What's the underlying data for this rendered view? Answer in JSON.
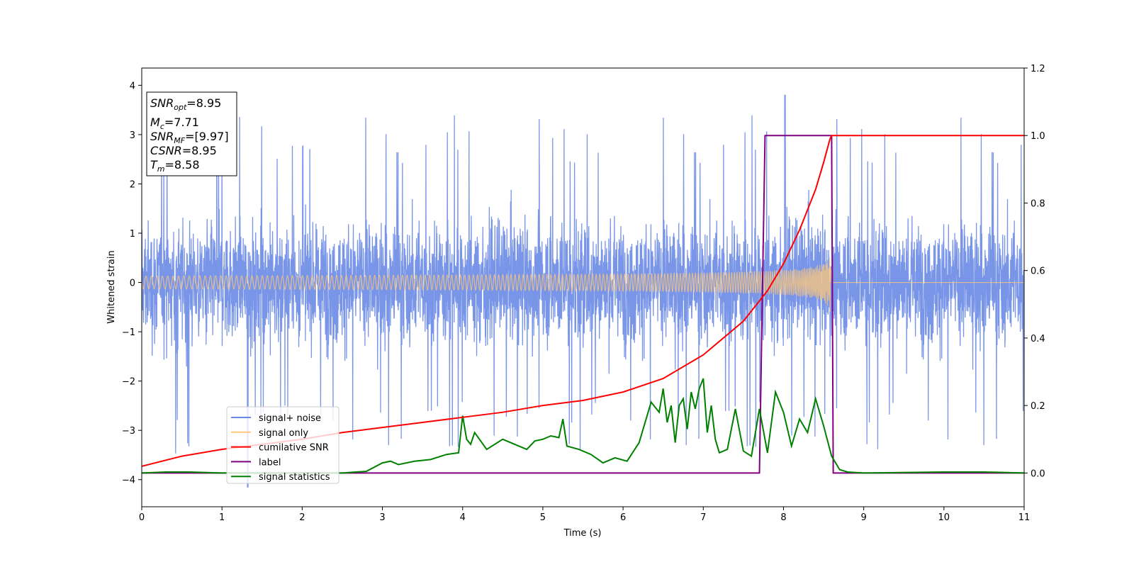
{
  "chart_data": {
    "type": "line",
    "xlabel": "Time (s)",
    "ylabel": "Whitened strain",
    "xlim": [
      0,
      11
    ],
    "ylim": [
      -4.55,
      4.35
    ],
    "y2lim": [
      -0.1,
      1.2
    ],
    "x_ticks": [
      "0",
      "1",
      "2",
      "3",
      "4",
      "5",
      "6",
      "7",
      "8",
      "9",
      "10",
      "11"
    ],
    "y_ticks": [
      "−4",
      "−3",
      "−2",
      "−1",
      "0",
      "1",
      "2",
      "3",
      "4"
    ],
    "y2_ticks": [
      "0.0",
      "0.2",
      "0.4",
      "0.6",
      "0.8",
      "1.0",
      "1.2"
    ],
    "info_box": {
      "snr_opt": {
        "base": "SNR",
        "sub": "opt",
        "value": "=8.95"
      },
      "mc": {
        "base": "M",
        "sub": "c",
        "value": "=7.71"
      },
      "snr_mf": {
        "base": "SNR",
        "sub": "MF",
        "value": "=[9.97]"
      },
      "csnr": {
        "base": "CSNR",
        "sub": "",
        "value": "=8.95"
      },
      "tm": {
        "base": "T",
        "sub": "m",
        "value": "=8.58"
      }
    },
    "legend": {
      "placement": "lower-left",
      "entries": [
        {
          "label": "signal+ noise",
          "color": "#6a89e6"
        },
        {
          "label": "signal only",
          "color": "#ffc87a"
        },
        {
          "label": "cumilative SNR",
          "color": "#ff0000"
        },
        {
          "label": "label",
          "color": "#800080"
        },
        {
          "label": "signal statistics",
          "color": "#008000"
        }
      ]
    },
    "series": [
      {
        "name": "signal+ noise",
        "axis": "left",
        "color": "#6a89e6",
        "description": "dense whitened noise band, roughly ±2 with spikes to ±3.5",
        "envelope": {
          "typical_amplitude": 1.6,
          "spike_max": 3.8,
          "spike_min": -4.15
        }
      },
      {
        "name": "signal only",
        "axis": "left",
        "color": "#ffc87a",
        "chirp_end": 8.6,
        "amplitude_at_end": 0.68
      },
      {
        "name": "cumilative SNR",
        "axis": "right",
        "color": "#ff0000",
        "x": [
          0,
          0.5,
          1,
          1.5,
          2,
          2.5,
          3,
          3.5,
          4,
          4.5,
          5,
          5.5,
          6,
          6.5,
          7,
          7.5,
          7.8,
          8.0,
          8.2,
          8.4,
          8.5,
          8.58,
          8.6,
          11
        ],
        "y": [
          0.02,
          0.05,
          0.07,
          0.085,
          0.1,
          0.12,
          0.135,
          0.15,
          0.165,
          0.18,
          0.2,
          0.215,
          0.24,
          0.28,
          0.35,
          0.45,
          0.54,
          0.62,
          0.72,
          0.84,
          0.92,
          0.99,
          1.0,
          1.0
        ]
      },
      {
        "name": "label",
        "axis": "right",
        "color": "#800080",
        "x": [
          0,
          7.7,
          7.77,
          8.6,
          8.62,
          11
        ],
        "y": [
          0,
          0,
          1,
          1,
          0,
          0
        ]
      },
      {
        "name": "signal statistics",
        "axis": "right",
        "color": "#008000",
        "x": [
          0,
          0.3,
          0.6,
          1,
          2,
          2.5,
          2.8,
          3.0,
          3.1,
          3.2,
          3.4,
          3.6,
          3.8,
          3.95,
          4.0,
          4.05,
          4.1,
          4.15,
          4.3,
          4.5,
          4.7,
          4.8,
          4.9,
          5.0,
          5.1,
          5.2,
          5.25,
          5.3,
          5.45,
          5.6,
          5.75,
          5.9,
          6.05,
          6.2,
          6.35,
          6.45,
          6.5,
          6.55,
          6.6,
          6.65,
          6.7,
          6.75,
          6.8,
          6.85,
          6.9,
          6.95,
          7.0,
          7.05,
          7.1,
          7.15,
          7.2,
          7.3,
          7.4,
          7.5,
          7.6,
          7.7,
          7.8,
          7.9,
          8.0,
          8.1,
          8.2,
          8.3,
          8.4,
          8.5,
          8.6,
          8.7,
          8.8,
          9,
          10,
          10.5,
          11
        ],
        "y": [
          0.0,
          0.003,
          0.003,
          0.0,
          0.0,
          0.0,
          0.005,
          0.03,
          0.035,
          0.025,
          0.035,
          0.04,
          0.055,
          0.06,
          0.17,
          0.1,
          0.085,
          0.12,
          0.07,
          0.1,
          0.08,
          0.07,
          0.095,
          0.1,
          0.11,
          0.105,
          0.16,
          0.08,
          0.07,
          0.055,
          0.03,
          0.045,
          0.035,
          0.09,
          0.21,
          0.18,
          0.25,
          0.15,
          0.2,
          0.09,
          0.2,
          0.22,
          0.13,
          0.24,
          0.19,
          0.25,
          0.28,
          0.12,
          0.2,
          0.1,
          0.06,
          0.07,
          0.19,
          0.065,
          0.05,
          0.19,
          0.06,
          0.24,
          0.18,
          0.08,
          0.16,
          0.12,
          0.22,
          0.14,
          0.05,
          0.01,
          0.003,
          0.0,
          0.003,
          0.003,
          0.0
        ]
      }
    ]
  }
}
